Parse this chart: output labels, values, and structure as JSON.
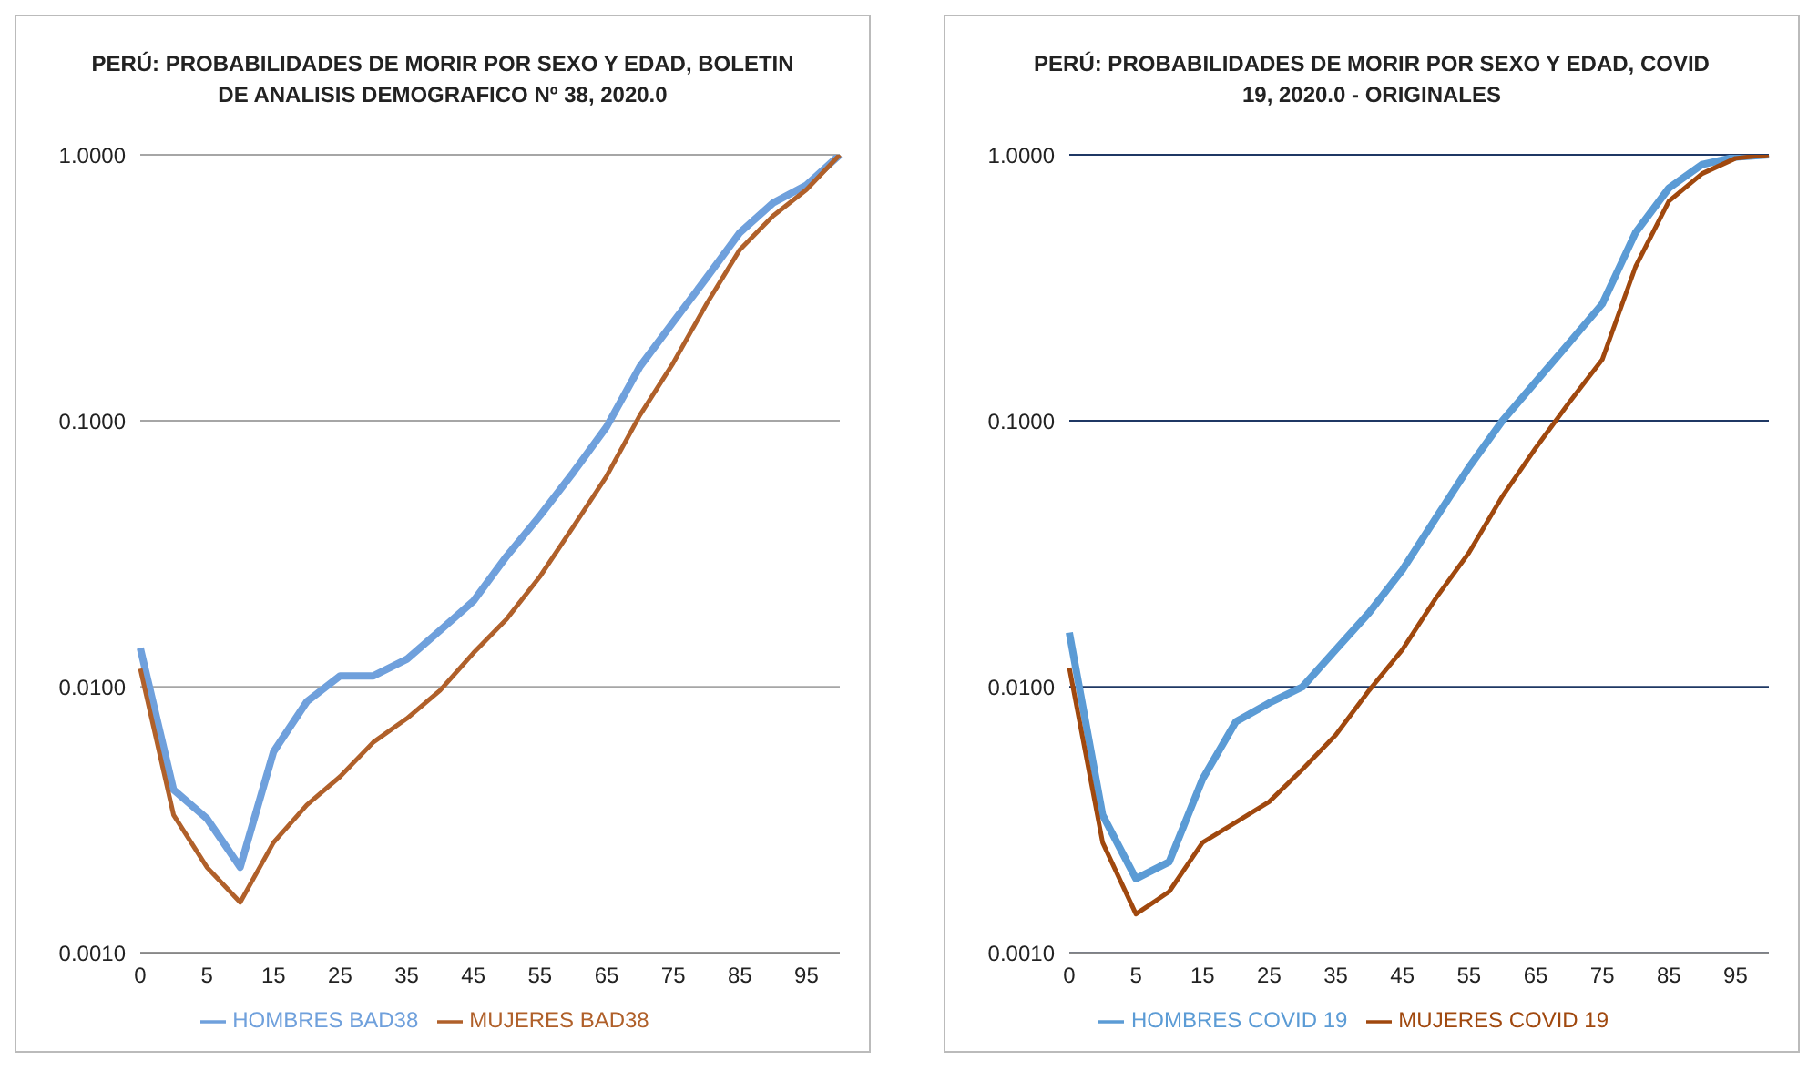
{
  "chart_data": [
    {
      "type": "line",
      "title": "PERÚ: PROBABILIDADES DE MORIR POR SEXO Y EDAD, BOLETIN DE ANALISIS DEMOGRAFICO Nº 38, 2020.0",
      "categories": [
        "0",
        null,
        "5",
        null,
        "15",
        null,
        "25",
        null,
        "35",
        null,
        "45",
        null,
        "55",
        null,
        "65",
        null,
        "75",
        null,
        "85",
        null,
        "95",
        null
      ],
      "series": [
        {
          "name": "HOMBRES BAD38",
          "color": "#6fa0dc",
          "values": [
            0.014,
            0.0041,
            0.0032,
            0.0021,
            0.0057,
            0.0088,
            0.011,
            0.011,
            0.0127,
            0.0163,
            0.021,
            0.031,
            0.044,
            0.064,
            0.095,
            0.16,
            0.235,
            0.345,
            0.51,
            0.66,
            0.77,
            1.0
          ]
        },
        {
          "name": "MUJERES BAD38",
          "color": "#b0602a",
          "values": [
            0.0117,
            0.0033,
            0.0021,
            0.00155,
            0.0026,
            0.0036,
            0.0046,
            0.0062,
            0.0076,
            0.0097,
            0.0134,
            0.018,
            0.026,
            0.04,
            0.062,
            0.105,
            0.165,
            0.275,
            0.44,
            0.59,
            0.74,
            1.0
          ]
        }
      ],
      "log": "y",
      "ylim": [
        0.001,
        1
      ],
      "yticks": [
        {
          "value": 0.001,
          "label": "0.0010"
        },
        {
          "value": 0.01,
          "label": "0.0100"
        },
        {
          "value": 0.1,
          "label": "0.1000"
        },
        {
          "value": 1,
          "label": "1.0000"
        }
      ],
      "grid": "y",
      "legend": "bottom",
      "marker": "none",
      "line_style": "solid"
    },
    {
      "type": "line",
      "title": "PERÚ: PROBABILIDADES DE MORIR POR SEXO Y EDAD, COVID 19, 2020.0 - ORIGINALES",
      "categories": [
        "0",
        null,
        "5",
        null,
        "15",
        null,
        "25",
        null,
        "35",
        null,
        "45",
        null,
        "55",
        null,
        "65",
        null,
        "75",
        null,
        "85",
        null,
        "95",
        null
      ],
      "series": [
        {
          "name": "HOMBRES COVID 19",
          "color": "#5b9bd5",
          "values": [
            0.016,
            0.0033,
            0.0019,
            0.0022,
            0.0045,
            0.0074,
            0.0087,
            0.01,
            0.0138,
            0.019,
            0.0275,
            0.043,
            0.067,
            0.1,
            0.14,
            0.196,
            0.275,
            0.51,
            0.75,
            0.92,
            0.98,
            1.0
          ]
        },
        {
          "name": "MUJERES COVID 19",
          "color": "#a0480e",
          "values": [
            0.0118,
            0.0026,
            0.0014,
            0.0017,
            0.0026,
            0.0031,
            0.0037,
            0.0049,
            0.0066,
            0.0097,
            0.0138,
            0.0215,
            0.032,
            0.052,
            0.079,
            0.117,
            0.17,
            0.38,
            0.67,
            0.85,
            0.97,
            1.0
          ]
        }
      ],
      "log": "y",
      "ylim": [
        0.001,
        1
      ],
      "yticks": [
        {
          "value": 0.001,
          "label": "0.0010"
        },
        {
          "value": 0.01,
          "label": "0.0100"
        },
        {
          "value": 0.1,
          "label": "0.1000"
        },
        {
          "value": 1,
          "label": "1.0000"
        }
      ],
      "grid": "y",
      "legend": "bottom",
      "marker": "none",
      "line_style": "solid"
    }
  ]
}
